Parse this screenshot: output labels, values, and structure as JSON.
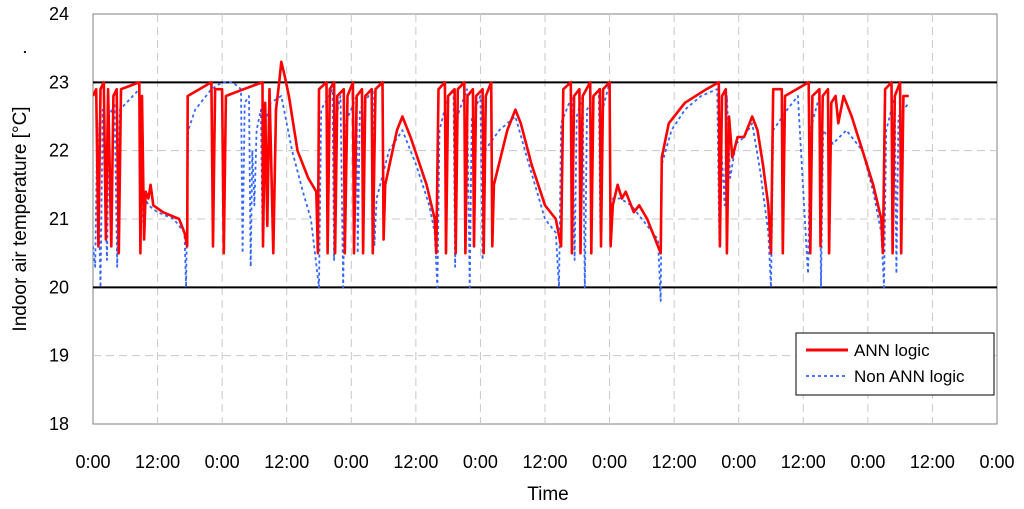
{
  "chart_data": {
    "type": "line",
    "title": "",
    "xlabel": "Time",
    "ylabel": "Indoor air temperature [°C]",
    "ylabel_suffix": ".",
    "ylim": [
      18,
      24
    ],
    "yticks": [
      "18",
      "19",
      "20",
      "21",
      "22",
      "23",
      "24"
    ],
    "xlim_hours": [
      0,
      168
    ],
    "xtick_labels": [
      "0:00",
      "12:00",
      "0:00",
      "12:00",
      "0:00",
      "12:00",
      "0:00",
      "12:00",
      "0:00",
      "12:00",
      "0:00",
      "12:00",
      "0:00",
      "12:00",
      "0:00"
    ],
    "grid": true,
    "legend_position": "bottom-right",
    "reference_lines": [
      20,
      23
    ],
    "series": [
      {
        "name": "ANN logic",
        "color": "#ff0000",
        "style": "solid",
        "points": [
          [
            0,
            22.8
          ],
          [
            0.6,
            22.9
          ],
          [
            1.0,
            20.6
          ],
          [
            1.4,
            22.9
          ],
          [
            2.0,
            23.0
          ],
          [
            2.4,
            20.7
          ],
          [
            2.8,
            22.9
          ],
          [
            3.4,
            20.6
          ],
          [
            3.8,
            22.8
          ],
          [
            4.4,
            22.9
          ],
          [
            4.8,
            20.5
          ],
          [
            5.2,
            22.9
          ],
          [
            8.6,
            23.0
          ],
          [
            8.8,
            20.5
          ],
          [
            9.1,
            22.8
          ],
          [
            9.5,
            20.7
          ],
          [
            9.8,
            21.4
          ],
          [
            10.3,
            21.3
          ],
          [
            10.7,
            21.5
          ],
          [
            11.2,
            21.2
          ],
          [
            13.0,
            21.1
          ],
          [
            16.0,
            21.0
          ],
          [
            17.0,
            20.8
          ],
          [
            17.5,
            20.6
          ],
          [
            17.6,
            22.8
          ],
          [
            22.0,
            23.0
          ],
          [
            22.3,
            20.6
          ],
          [
            22.7,
            22.9
          ],
          [
            24.0,
            22.9
          ],
          [
            24.3,
            20.5
          ],
          [
            24.7,
            22.8
          ],
          [
            28.0,
            22.9
          ],
          [
            31.5,
            23.0
          ],
          [
            31.6,
            20.6
          ],
          [
            32.0,
            22.7
          ],
          [
            32.4,
            20.9
          ],
          [
            32.8,
            22.9
          ],
          [
            33.5,
            20.5
          ],
          [
            34.0,
            22.6
          ],
          [
            34.6,
            23.0
          ],
          [
            35.0,
            23.3
          ],
          [
            35.6,
            23.1
          ],
          [
            36.4,
            22.8
          ],
          [
            38.0,
            22.0
          ],
          [
            40.0,
            21.6
          ],
          [
            41.5,
            21.4
          ],
          [
            41.8,
            20.5
          ],
          [
            42.0,
            22.9
          ],
          [
            43.4,
            23.0
          ],
          [
            43.6,
            20.5
          ],
          [
            44.0,
            22.9
          ],
          [
            44.8,
            23.0
          ],
          [
            45.0,
            20.5
          ],
          [
            45.4,
            22.8
          ],
          [
            46.6,
            22.9
          ],
          [
            46.8,
            20.5
          ],
          [
            47.3,
            22.8
          ],
          [
            48.3,
            23.0
          ],
          [
            48.5,
            20.5
          ],
          [
            49.0,
            22.8
          ],
          [
            50.0,
            22.9
          ],
          [
            50.2,
            20.5
          ],
          [
            50.6,
            22.8
          ],
          [
            51.8,
            22.9
          ],
          [
            52.0,
            20.5
          ],
          [
            52.5,
            22.9
          ],
          [
            53.8,
            23.0
          ],
          [
            54.0,
            20.7
          ],
          [
            54.3,
            21.5
          ],
          [
            56.5,
            22.3
          ],
          [
            57.5,
            22.5
          ],
          [
            59.0,
            22.2
          ],
          [
            62.0,
            21.5
          ],
          [
            63.5,
            21.0
          ],
          [
            63.8,
            20.5
          ],
          [
            64.2,
            22.9
          ],
          [
            65.4,
            23.0
          ],
          [
            65.6,
            20.5
          ],
          [
            66.0,
            22.8
          ],
          [
            67.2,
            22.9
          ],
          [
            67.4,
            20.5
          ],
          [
            67.8,
            22.9
          ],
          [
            69.0,
            23.0
          ],
          [
            69.2,
            20.5
          ],
          [
            69.6,
            22.8
          ],
          [
            70.6,
            22.9
          ],
          [
            70.8,
            20.6
          ],
          [
            71.2,
            22.8
          ],
          [
            72.4,
            22.9
          ],
          [
            72.6,
            20.5
          ],
          [
            73.0,
            22.8
          ],
          [
            74.0,
            23.0
          ],
          [
            74.2,
            20.6
          ],
          [
            74.5,
            21.5
          ],
          [
            77.0,
            22.3
          ],
          [
            78.5,
            22.6
          ],
          [
            79.5,
            22.4
          ],
          [
            81.5,
            21.8
          ],
          [
            84.0,
            21.2
          ],
          [
            86.0,
            21.0
          ],
          [
            87.0,
            20.6
          ],
          [
            87.4,
            22.9
          ],
          [
            88.8,
            23.0
          ],
          [
            89.0,
            20.5
          ],
          [
            89.4,
            22.8
          ],
          [
            90.4,
            22.9
          ],
          [
            90.6,
            20.5
          ],
          [
            91.0,
            22.8
          ],
          [
            92.4,
            23.0
          ],
          [
            92.6,
            20.5
          ],
          [
            93.0,
            22.8
          ],
          [
            94.2,
            22.9
          ],
          [
            94.4,
            20.6
          ],
          [
            94.8,
            22.9
          ],
          [
            96.0,
            23.0
          ],
          [
            96.2,
            20.6
          ],
          [
            96.6,
            21.2
          ],
          [
            97.5,
            21.5
          ],
          [
            98.3,
            21.3
          ],
          [
            99.0,
            21.4
          ],
          [
            100.5,
            21.1
          ],
          [
            101.5,
            21.2
          ],
          [
            103.0,
            21.0
          ],
          [
            105.5,
            20.5
          ],
          [
            105.7,
            21.9
          ],
          [
            107.0,
            22.4
          ],
          [
            110.0,
            22.7
          ],
          [
            114.0,
            22.9
          ],
          [
            116.3,
            23.0
          ],
          [
            116.5,
            20.6
          ],
          [
            116.9,
            22.8
          ],
          [
            117.6,
            22.9
          ],
          [
            117.8,
            20.5
          ],
          [
            118.2,
            22.5
          ],
          [
            118.8,
            21.9
          ],
          [
            119.8,
            22.2
          ],
          [
            121.0,
            22.2
          ],
          [
            122.5,
            22.5
          ],
          [
            123.5,
            22.3
          ],
          [
            124.5,
            21.8
          ],
          [
            125.5,
            21.2
          ],
          [
            126.0,
            20.5
          ],
          [
            126.4,
            22.9
          ],
          [
            128.0,
            22.9
          ],
          [
            128.2,
            20.5
          ],
          [
            128.6,
            22.8
          ],
          [
            133.0,
            23.0
          ],
          [
            133.3,
            20.5
          ],
          [
            133.7,
            22.8
          ],
          [
            135.0,
            22.9
          ],
          [
            135.2,
            20.6
          ],
          [
            135.6,
            22.8
          ],
          [
            136.6,
            22.9
          ],
          [
            136.8,
            20.5
          ],
          [
            137.2,
            22.7
          ],
          [
            138.0,
            22.8
          ],
          [
            138.5,
            22.4
          ],
          [
            139.5,
            22.8
          ],
          [
            141.0,
            22.5
          ],
          [
            143.0,
            22.0
          ],
          [
            145.0,
            21.5
          ],
          [
            146.5,
            21.0
          ],
          [
            146.8,
            20.5
          ],
          [
            147.2,
            22.9
          ],
          [
            148.4,
            23.0
          ],
          [
            148.6,
            20.5
          ],
          [
            149.0,
            22.8
          ],
          [
            150.0,
            23.0
          ],
          [
            150.2,
            20.5
          ],
          [
            150.6,
            22.8
          ],
          [
            151.6,
            22.8
          ]
        ]
      },
      {
        "name": "Non ANN logic",
        "color": "#3366ff",
        "style": "dotted",
        "points": [
          [
            0,
            20.6
          ],
          [
            0.4,
            20.3
          ],
          [
            0.8,
            22.4
          ],
          [
            1.4,
            20.0
          ],
          [
            1.8,
            22.6
          ],
          [
            2.6,
            20.4
          ],
          [
            3.0,
            22.5
          ],
          [
            4.0,
            22.7
          ],
          [
            4.5,
            20.3
          ],
          [
            5.0,
            22.6
          ],
          [
            8.6,
            22.9
          ],
          [
            8.8,
            20.6
          ],
          [
            9.2,
            21.4
          ],
          [
            10.3,
            21.2
          ],
          [
            12.0,
            21.1
          ],
          [
            15.0,
            21.0
          ],
          [
            17.0,
            20.8
          ],
          [
            17.3,
            20.0
          ],
          [
            17.7,
            22.3
          ],
          [
            19.0,
            22.6
          ],
          [
            22.0,
            22.9
          ],
          [
            24.0,
            23.0
          ],
          [
            26.0,
            23.0
          ],
          [
            27.5,
            22.9
          ],
          [
            27.8,
            20.5
          ],
          [
            28.2,
            22.7
          ],
          [
            29.0,
            22.8
          ],
          [
            29.3,
            20.3
          ],
          [
            29.6,
            22.0
          ],
          [
            30.0,
            21.2
          ],
          [
            30.4,
            22.3
          ],
          [
            31.2,
            22.6
          ],
          [
            31.5,
            20.8
          ],
          [
            32.0,
            22.4
          ],
          [
            33.0,
            22.7
          ],
          [
            35.0,
            22.8
          ],
          [
            37.0,
            22.0
          ],
          [
            39.0,
            21.4
          ],
          [
            40.5,
            21.0
          ],
          [
            42.0,
            20.0
          ],
          [
            42.4,
            22.6
          ],
          [
            44.5,
            22.9
          ],
          [
            44.8,
            20.4
          ],
          [
            45.2,
            22.5
          ],
          [
            46.0,
            22.8
          ],
          [
            46.5,
            20.0
          ],
          [
            46.9,
            22.4
          ],
          [
            49.0,
            22.8
          ],
          [
            49.2,
            20.5
          ],
          [
            49.6,
            22.6
          ],
          [
            52.0,
            22.9
          ],
          [
            52.3,
            20.6
          ],
          [
            52.7,
            21.3
          ],
          [
            55.0,
            22.0
          ],
          [
            57.5,
            22.3
          ],
          [
            60.0,
            21.8
          ],
          [
            62.5,
            21.2
          ],
          [
            63.5,
            20.8
          ],
          [
            64.0,
            20.0
          ],
          [
            64.4,
            22.3
          ],
          [
            66.0,
            22.8
          ],
          [
            67.0,
            22.9
          ],
          [
            67.3,
            20.3
          ],
          [
            67.7,
            22.5
          ],
          [
            69.5,
            22.9
          ],
          [
            70.0,
            20.0
          ],
          [
            70.4,
            22.5
          ],
          [
            72.0,
            22.8
          ],
          [
            72.4,
            20.4
          ],
          [
            72.8,
            22.0
          ],
          [
            75.5,
            22.3
          ],
          [
            78.5,
            22.5
          ],
          [
            81.0,
            21.8
          ],
          [
            84.0,
            21.0
          ],
          [
            86.0,
            20.8
          ],
          [
            86.6,
            20.0
          ],
          [
            87.0,
            22.4
          ],
          [
            89.0,
            22.8
          ],
          [
            89.5,
            20.4
          ],
          [
            89.9,
            22.5
          ],
          [
            91.0,
            22.8
          ],
          [
            91.4,
            20.0
          ],
          [
            91.8,
            22.6
          ],
          [
            94.0,
            22.9
          ],
          [
            94.3,
            20.8
          ],
          [
            94.7,
            22.6
          ],
          [
            96.0,
            23.0
          ],
          [
            96.2,
            20.7
          ],
          [
            96.6,
            21.3
          ],
          [
            98.0,
            21.3
          ],
          [
            100.0,
            21.2
          ],
          [
            102.0,
            21.0
          ],
          [
            105.0,
            20.7
          ],
          [
            105.5,
            19.8
          ],
          [
            105.7,
            21.8
          ],
          [
            107.5,
            22.3
          ],
          [
            110.0,
            22.6
          ],
          [
            113.0,
            22.8
          ],
          [
            116.0,
            22.9
          ],
          [
            116.4,
            20.7
          ],
          [
            116.8,
            22.0
          ],
          [
            117.4,
            21.2
          ],
          [
            117.8,
            22.8
          ],
          [
            118.4,
            21.6
          ],
          [
            119.5,
            22.1
          ],
          [
            121.0,
            22.2
          ],
          [
            122.5,
            22.4
          ],
          [
            124.0,
            21.7
          ],
          [
            125.5,
            20.8
          ],
          [
            126.0,
            20.0
          ],
          [
            126.4,
            22.3
          ],
          [
            129.0,
            22.6
          ],
          [
            131.0,
            22.8
          ],
          [
            132.5,
            20.7
          ],
          [
            132.9,
            20.2
          ],
          [
            133.3,
            22.3
          ],
          [
            135.0,
            22.8
          ],
          [
            135.3,
            20.0
          ],
          [
            135.7,
            22.3
          ],
          [
            137.5,
            22.1
          ],
          [
            140.0,
            22.3
          ],
          [
            143.0,
            22.0
          ],
          [
            145.0,
            21.4
          ],
          [
            146.5,
            20.8
          ],
          [
            147.0,
            20.0
          ],
          [
            147.4,
            22.3
          ],
          [
            149.0,
            22.8
          ],
          [
            149.3,
            20.2
          ],
          [
            149.7,
            22.5
          ],
          [
            151.6,
            22.7
          ]
        ]
      }
    ]
  }
}
